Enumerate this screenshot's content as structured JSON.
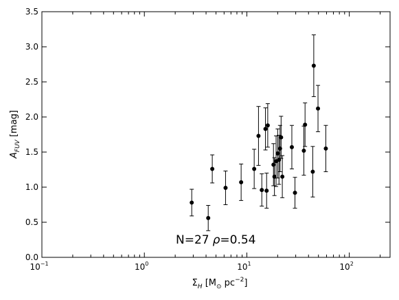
{
  "chart_data": {
    "type": "scatter",
    "title": "",
    "xlabel": {
      "main": "Σ",
      "sub": "H",
      "rest": " [M",
      "sun": "⊙",
      "rest2": " pc",
      "sup": "−2",
      "close": "]"
    },
    "ylabel": {
      "main": "A",
      "sub": "FUV",
      "rest": " [mag]"
    },
    "x_scale": "log",
    "xlim": [
      0.1,
      250
    ],
    "ylim": [
      0.0,
      3.5
    ],
    "x_tick_labels": [
      {
        "base": "10",
        "exp": "−1",
        "value": 0.1
      },
      {
        "base": "10",
        "exp": "0",
        "value": 1
      },
      {
        "base": "10",
        "exp": "1",
        "value": 10
      },
      {
        "base": "10",
        "exp": "2",
        "value": 100
      }
    ],
    "y_ticks": [
      "0.0",
      "0.5",
      "1.0",
      "1.5",
      "2.0",
      "2.5",
      "3.0",
      "3.5"
    ],
    "annotation": {
      "n_text": "N=27",
      "rho_symbol": "ρ",
      "rho_text": "=0.54"
    },
    "points": [
      {
        "x": 2.9,
        "y": 0.78,
        "yerr": 0.19
      },
      {
        "x": 4.2,
        "y": 0.56,
        "yerr": 0.18
      },
      {
        "x": 4.6,
        "y": 1.26,
        "yerr": 0.2
      },
      {
        "x": 6.2,
        "y": 0.99,
        "yerr": 0.24
      },
      {
        "x": 8.8,
        "y": 1.07,
        "yerr": 0.26
      },
      {
        "x": 11.8,
        "y": 1.26,
        "yerr": 0.28
      },
      {
        "x": 13.0,
        "y": 1.73,
        "yerr": 0.42
      },
      {
        "x": 14.0,
        "y": 0.96,
        "yerr": 0.23
      },
      {
        "x": 15.2,
        "y": 1.83,
        "yerr": 0.3
      },
      {
        "x": 15.6,
        "y": 0.95,
        "yerr": 0.25
      },
      {
        "x": 16.0,
        "y": 1.88,
        "yerr": 0.31
      },
      {
        "x": 18.2,
        "y": 1.32,
        "yerr": 0.3
      },
      {
        "x": 18.6,
        "y": 1.15,
        "yerr": 0.27
      },
      {
        "x": 19.3,
        "y": 1.37,
        "yerr": 0.36
      },
      {
        "x": 20.0,
        "y": 1.48,
        "yerr": 0.35
      },
      {
        "x": 20.6,
        "y": 1.39,
        "yerr": 0.35
      },
      {
        "x": 21.1,
        "y": 1.55,
        "yerr": 0.33
      },
      {
        "x": 21.6,
        "y": 1.71,
        "yerr": 0.3
      },
      {
        "x": 22.2,
        "y": 1.15,
        "yerr": 0.3
      },
      {
        "x": 27.5,
        "y": 1.57,
        "yerr": 0.31
      },
      {
        "x": 29.5,
        "y": 0.92,
        "yerr": 0.22
      },
      {
        "x": 36.0,
        "y": 1.52,
        "yerr": 0.35
      },
      {
        "x": 37.0,
        "y": 1.89,
        "yerr": 0.31
      },
      {
        "x": 44.0,
        "y": 1.22,
        "yerr": 0.36
      },
      {
        "x": 45.0,
        "y": 2.73,
        "yerr": 0.44
      },
      {
        "x": 49.5,
        "y": 2.12,
        "yerr": 0.33
      },
      {
        "x": 59.0,
        "y": 1.55,
        "yerr": 0.33
      }
    ]
  }
}
